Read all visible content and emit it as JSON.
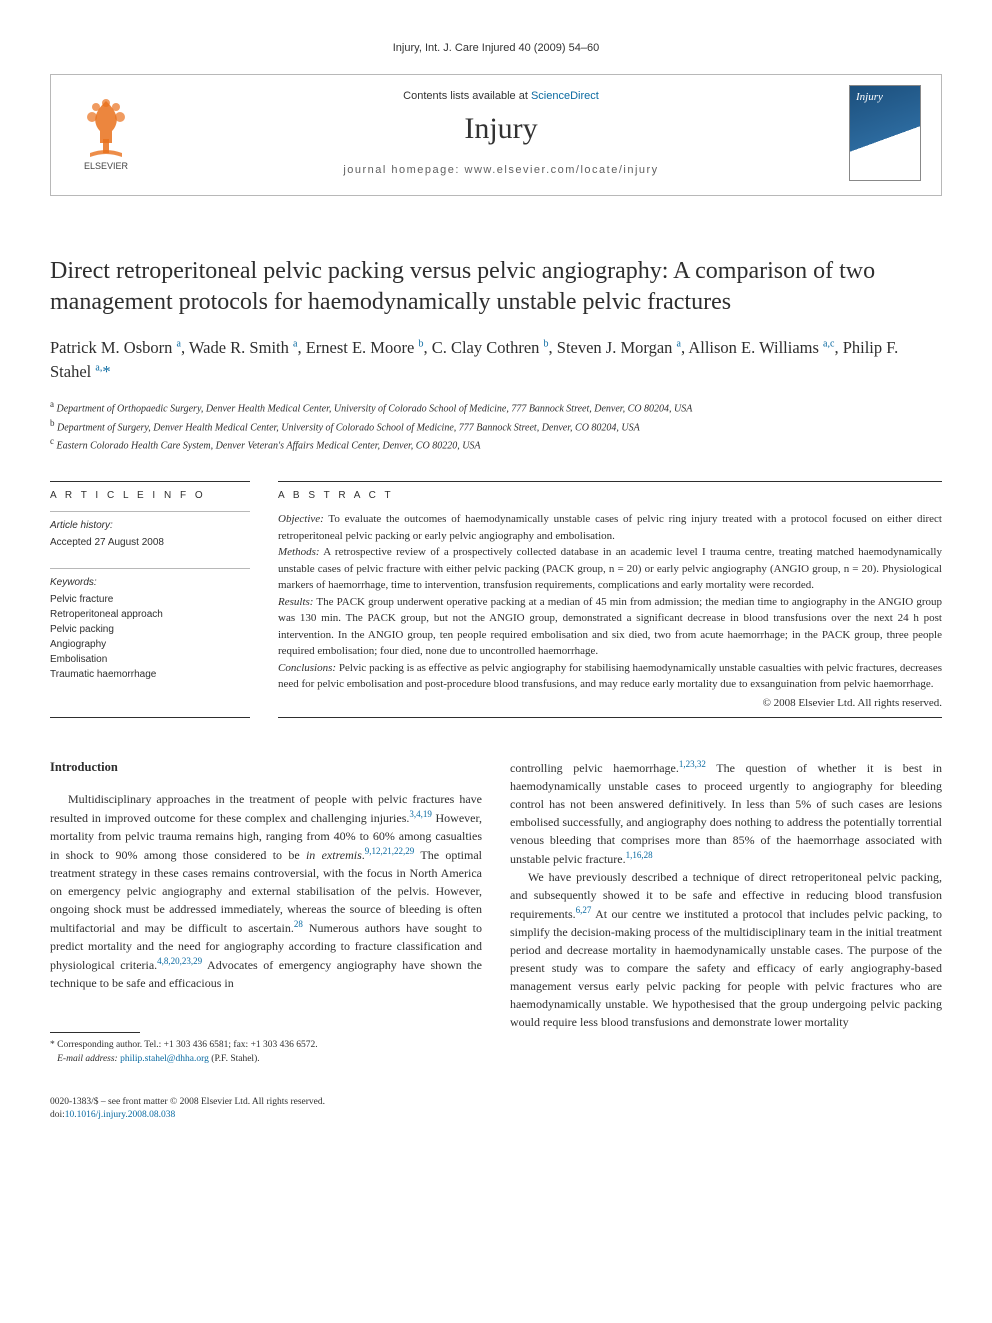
{
  "banner": {
    "citation": "Injury, Int. J. Care Injured 40 (2009) 54–60",
    "contents_avail_pre": "Contents lists available at ",
    "contents_avail_link": "ScienceDirect",
    "journal": "Injury",
    "homepage_label": "journal homepage: ",
    "homepage_url": "www.elsevier.com/locate/injury",
    "publisher_logo_name": "ELSEVIER",
    "logo_fill": "#e9711c",
    "logo_text_color": "#444444",
    "cover_bg_top": "#1c4f7c",
    "cover_bg_mid": "#2c6a9e"
  },
  "article": {
    "title": "Direct retroperitoneal pelvic packing versus pelvic angiography: A comparison of two management protocols for haemodynamically unstable pelvic fractures",
    "authors_html": "Patrick M. Osborn <sup>a</sup>, Wade R. Smith <sup>a</sup>, Ernest E. Moore <sup>b</sup>, C. Clay Cothren <sup>b</sup>, Steven J. Morgan <sup>a</sup>, Allison E. Williams <sup>a,c</sup>, Philip F. Stahel <sup>a,</sup><span class=\"corr\">*</span>",
    "affiliations": [
      {
        "tag": "a",
        "text": "Department of Orthopaedic Surgery, Denver Health Medical Center, University of Colorado School of Medicine, 777 Bannock Street, Denver, CO 80204, USA"
      },
      {
        "tag": "b",
        "text": "Department of Surgery, Denver Health Medical Center, University of Colorado School of Medicine, 777 Bannock Street, Denver, CO 80204, USA"
      },
      {
        "tag": "c",
        "text": "Eastern Colorado Health Care System, Denver Veteran's Affairs Medical Center, Denver, CO 80220, USA"
      }
    ]
  },
  "info": {
    "heading": "A R T I C L E   I N F O",
    "history_label": "Article history:",
    "history_text": "Accepted 27 August 2008",
    "keywords_label": "Keywords:",
    "keywords": [
      "Pelvic fracture",
      "Retroperitoneal approach",
      "Pelvic packing",
      "Angiography",
      "Embolisation",
      "Traumatic haemorrhage"
    ]
  },
  "abstract": {
    "heading": "A B S T R A C T",
    "segments": [
      {
        "label": "Objective:",
        "text": " To evaluate the outcomes of haemodynamically unstable cases of pelvic ring injury treated with a protocol focused on either direct retroperitoneal pelvic packing or early pelvic angiography and embolisation."
      },
      {
        "label": "Methods:",
        "text": " A retrospective review of a prospectively collected database in an academic level I trauma centre, treating matched haemodynamically unstable cases of pelvic fracture with either pelvic packing (PACK group, n = 20) or early pelvic angiography (ANGIO group, n = 20). Physiological markers of haemorrhage, time to intervention, transfusion requirements, complications and early mortality were recorded."
      },
      {
        "label": "Results:",
        "text": " The PACK group underwent operative packing at a median of 45 min from admission; the median time to angiography in the ANGIO group was 130 min. The PACK group, but not the ANGIO group, demonstrated a significant decrease in blood transfusions over the next 24 h post intervention. In the ANGIO group, ten people required embolisation and six died, two from acute haemorrhage; in the PACK group, three people required embolisation; four died, none due to uncontrolled haemorrhage."
      },
      {
        "label": "Conclusions:",
        "text": " Pelvic packing is as effective as pelvic angiography for stabilising haemodynamically unstable casualties with pelvic fractures, decreases need for pelvic embolisation and post-procedure blood transfusions, and may reduce early mortality due to exsanguination from pelvic haemorrhage."
      }
    ],
    "copyright": "© 2008 Elsevier Ltd. All rights reserved."
  },
  "intro": {
    "heading": "Introduction",
    "para1_a": "Multidisciplinary approaches in the treatment of people with pelvic fractures have resulted in improved outcome for these complex and challenging injuries.",
    "para1_ref1": "3,4,19",
    "para1_b": " However, mortality from pelvic trauma remains high, ranging from 40% to 60% among casualties in shock to 90% among those considered to be ",
    "para1_c": "in extremis",
    "para1_d": ".",
    "para1_ref2": "9,12,21,22,29",
    "para1_e": " The optimal treatment strategy in these cases remains controversial, with the focus in North America on emergency pelvic angiography and external stabilisation of the pelvis. However, ongoing shock must be addressed immediately, whereas the source of bleeding is often multifactorial and may be difficult to ascertain.",
    "para1_ref3": "28",
    "para1_f": " Numerous authors have sought to predict mortality and the need for angiography according to fracture classification and physiological criteria.",
    "para1_ref4": "4,8,20,23,29",
    "para1_g": " Advocates of emergency angiography have shown the technique to be safe and efficacious in ",
    "para1_h": "controlling pelvic haemorrhage.",
    "para1_ref5": "1,23,32",
    "para1_i": " The question of whether it is best in haemodynamically unstable cases to proceed urgently to angiography for bleeding control has not been answered definitively. In less than 5% of such cases are lesions embolised successfully, and angiography does nothing to address the potentially torrential venous bleeding that comprises more than 85% of the haemorrhage associated with unstable pelvic fracture.",
    "para1_ref6": "1,16,28",
    "para2_a": "We have previously described a technique of direct retroperitoneal pelvic packing, and subsequently showed it to be safe and effective in reducing blood transfusion requirements.",
    "para2_ref1": "6,27",
    "para2_b": " At our centre we instituted a protocol that includes pelvic packing, to simplify the decision-making process of the multidisciplinary team in the initial treatment period and decrease mortality in haemodynamically unstable cases. The purpose of the present study was to compare the safety and efficacy of early angiography-based management versus early pelvic packing for people with pelvic fractures who are haemodynamically unstable. We hypothesised that the group undergoing pelvic packing would require less blood transfusions and demonstrate lower mortality"
  },
  "footnote": {
    "marker": "*",
    "text_a": " Corresponding author. Tel.: +1 303 436 6581; fax: +1 303 436 6572.",
    "email_label": "E-mail address:",
    "email": "philip.stahel@dhha.org",
    "email_tail": " (P.F. Stahel)."
  },
  "footer": {
    "line1": "0020-1383/$ – see front matter © 2008 Elsevier Ltd. All rights reserved.",
    "doi_label": "doi:",
    "doi": "10.1016/j.injury.2008.08.038"
  },
  "style": {
    "link_color": "#0a6aa1",
    "text_color": "#2e2e2e",
    "rule_color": "#2e2e2e",
    "light_rule": "#b8b8b8",
    "base_font_size_pt": 12,
    "abstract_font_size_pt": 11,
    "title_font_size_pt": 24,
    "author_font_size_pt": 16.5,
    "page_bg": "#ffffff"
  }
}
